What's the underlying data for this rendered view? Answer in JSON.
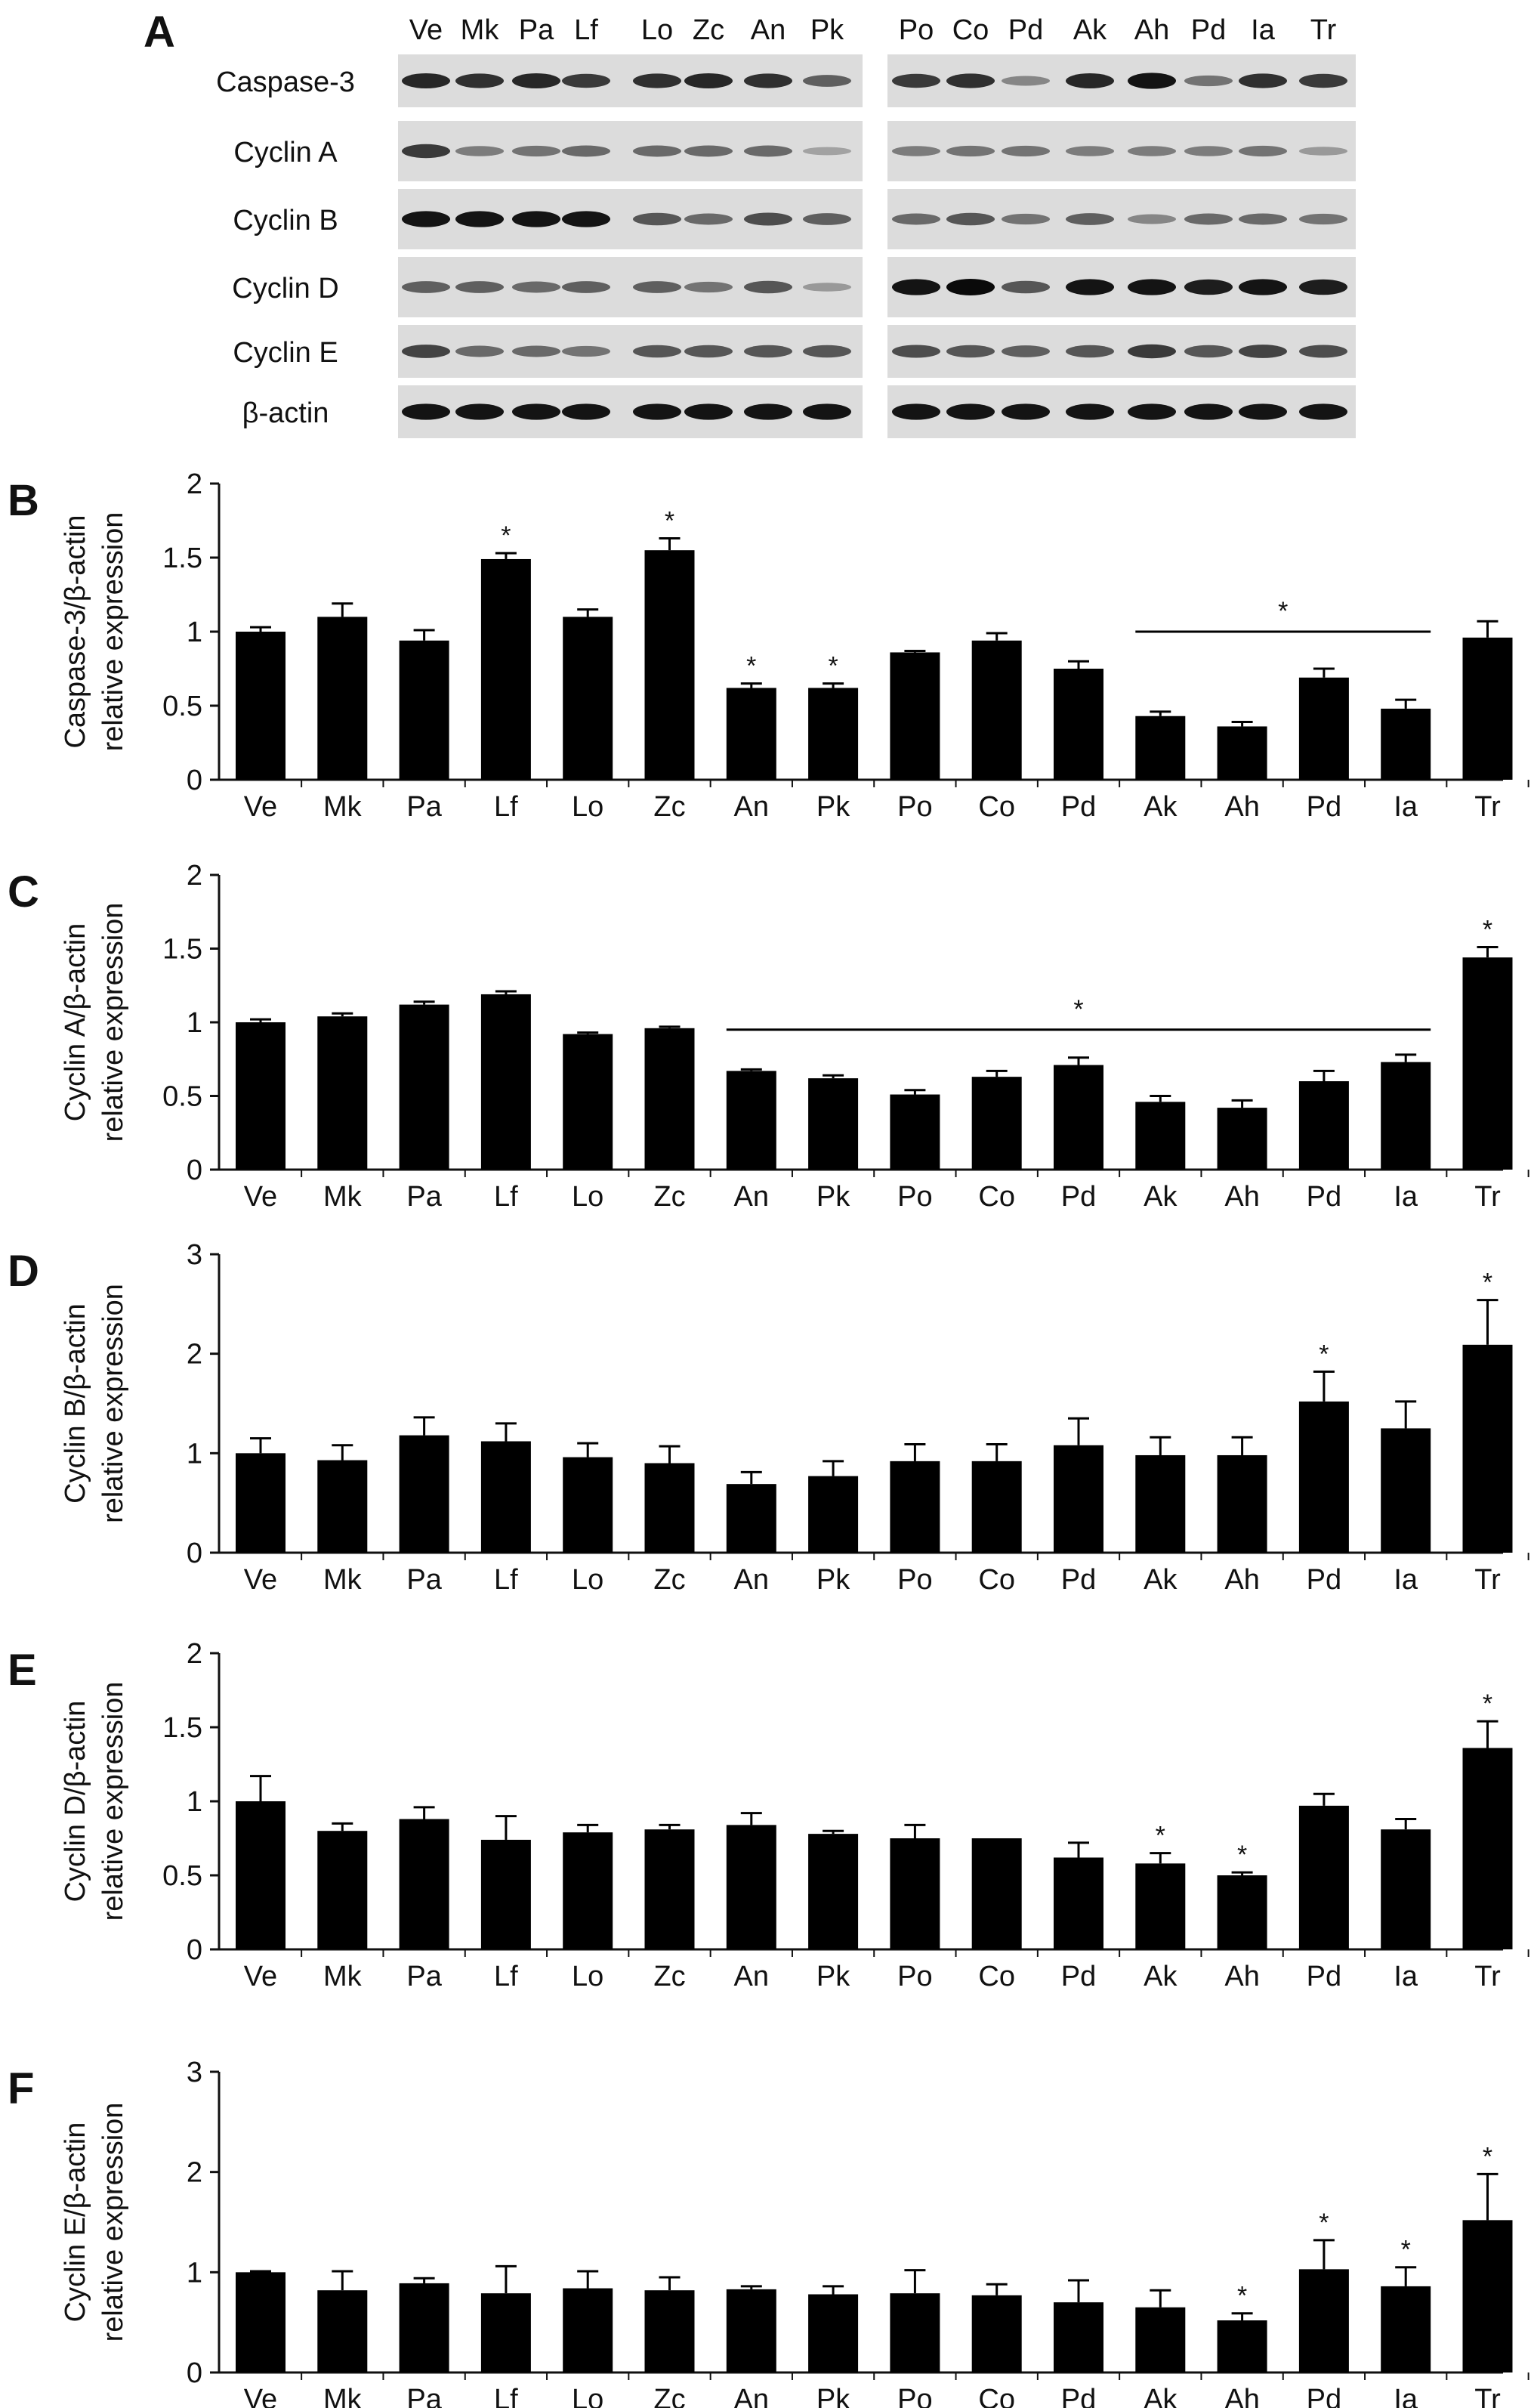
{
  "figure": {
    "panel_letters": [
      "A",
      "B",
      "C",
      "D",
      "E",
      "F"
    ]
  },
  "blot": {
    "lanes_left": [
      "Ve",
      "Mk",
      "Pa",
      "Lf",
      "Lo",
      "Zc",
      "An",
      "Pk"
    ],
    "lanes_right": [
      "Po",
      "Co",
      "Pd",
      "Ak",
      "Ah",
      "Pd",
      "Ia",
      "Tr"
    ],
    "rows": [
      {
        "name": "Caspase-3",
        "intensity": [
          0.85,
          0.8,
          0.85,
          0.75,
          0.8,
          0.85,
          0.8,
          0.55,
          0.75,
          0.8,
          0.35,
          0.85,
          0.95,
          0.45,
          0.8,
          0.75
        ]
      },
      {
        "name": "Cyclin A",
        "intensity": [
          0.75,
          0.4,
          0.45,
          0.5,
          0.5,
          0.5,
          0.5,
          0.2,
          0.4,
          0.45,
          0.45,
          0.4,
          0.4,
          0.4,
          0.45,
          0.25
        ]
      },
      {
        "name": "Cyclin B",
        "intensity": [
          0.95,
          0.95,
          0.95,
          0.95,
          0.6,
          0.5,
          0.65,
          0.55,
          0.5,
          0.6,
          0.45,
          0.55,
          0.35,
          0.5,
          0.5,
          0.45
        ]
      },
      {
        "name": "Cyclin D",
        "intensity": [
          0.55,
          0.55,
          0.5,
          0.55,
          0.55,
          0.45,
          0.6,
          0.25,
          0.95,
          1.0,
          0.6,
          0.95,
          0.95,
          0.9,
          0.95,
          0.9
        ]
      },
      {
        "name": "Cyclin E",
        "intensity": [
          0.7,
          0.5,
          0.5,
          0.45,
          0.6,
          0.6,
          0.6,
          0.6,
          0.65,
          0.6,
          0.55,
          0.6,
          0.75,
          0.6,
          0.7,
          0.65
        ]
      },
      {
        "name": "β-actin",
        "intensity": [
          0.95,
          0.95,
          0.95,
          0.95,
          0.95,
          0.95,
          0.95,
          0.95,
          0.95,
          0.95,
          0.95,
          0.95,
          0.95,
          0.95,
          0.95,
          0.95
        ]
      }
    ]
  },
  "chart_data": [
    {
      "panel": "B",
      "type": "bar",
      "ylabel_lines": [
        "Caspase-3/β-actin",
        "relative expression"
      ],
      "ylim": [
        0,
        2
      ],
      "yticks": [
        0,
        0.5,
        1,
        1.5,
        2
      ],
      "yticklabels": [
        "0",
        "0.5",
        "1",
        "1.5",
        "2"
      ],
      "categories": [
        "Ve",
        "Mk",
        "Pa",
        "Lf",
        "Lo",
        "Zc",
        "An",
        "Pk",
        "Po",
        "Co",
        "Pd",
        "Ak",
        "Ah",
        "Pd",
        "Ia",
        "Tr"
      ],
      "values": [
        1.0,
        1.1,
        0.94,
        1.49,
        1.1,
        1.55,
        0.62,
        0.62,
        0.86,
        0.94,
        0.75,
        0.43,
        0.36,
        0.69,
        0.48,
        0.96
      ],
      "errors": [
        0.03,
        0.09,
        0.07,
        0.04,
        0.05,
        0.08,
        0.03,
        0.03,
        0.01,
        0.05,
        0.05,
        0.03,
        0.03,
        0.06,
        0.06,
        0.11
      ],
      "stars": [
        3,
        5,
        6,
        7
      ],
      "bracket": {
        "from": 11,
        "to": 14,
        "y": 1.0
      }
    },
    {
      "panel": "C",
      "type": "bar",
      "ylabel_lines": [
        "Cyclin A/β-actin",
        "relative expression"
      ],
      "ylim": [
        0,
        2
      ],
      "yticks": [
        0,
        0.5,
        1,
        1.5,
        2
      ],
      "yticklabels": [
        "0",
        "0.5",
        "1",
        "1.5",
        "2"
      ],
      "categories": [
        "Ve",
        "Mk",
        "Pa",
        "Lf",
        "Lo",
        "Zc",
        "An",
        "Pk",
        "Po",
        "Co",
        "Pd",
        "Ak",
        "Ah",
        "Pd",
        "Ia",
        "Tr"
      ],
      "values": [
        1.0,
        1.04,
        1.12,
        1.19,
        0.92,
        0.96,
        0.67,
        0.62,
        0.51,
        0.63,
        0.71,
        0.46,
        0.42,
        0.6,
        0.73,
        1.44
      ],
      "errors": [
        0.02,
        0.02,
        0.02,
        0.02,
        0.01,
        0.01,
        0.01,
        0.02,
        0.03,
        0.04,
        0.05,
        0.04,
        0.05,
        0.07,
        0.05,
        0.07
      ],
      "stars": [
        15
      ],
      "bracket": {
        "from": 6,
        "to": 14,
        "y": 0.95
      }
    },
    {
      "panel": "D",
      "type": "bar",
      "ylabel_lines": [
        "Cyclin B/β-actin",
        "relative expression"
      ],
      "ylim": [
        0,
        3
      ],
      "yticks": [
        0,
        1,
        2,
        3
      ],
      "yticklabels": [
        "0",
        "1",
        "2",
        "3"
      ],
      "categories": [
        "Ve",
        "Mk",
        "Pa",
        "Lf",
        "Lo",
        "Zc",
        "An",
        "Pk",
        "Po",
        "Co",
        "Pd",
        "Ak",
        "Ah",
        "Pd",
        "Ia",
        "Tr"
      ],
      "values": [
        1.0,
        0.93,
        1.18,
        1.12,
        0.96,
        0.9,
        0.69,
        0.77,
        0.92,
        0.92,
        1.08,
        0.98,
        0.98,
        1.52,
        1.25,
        2.09
      ],
      "errors": [
        0.15,
        0.15,
        0.18,
        0.18,
        0.14,
        0.17,
        0.12,
        0.15,
        0.17,
        0.17,
        0.27,
        0.18,
        0.18,
        0.3,
        0.27,
        0.45
      ],
      "stars": [
        13,
        15
      ],
      "bracket": null
    },
    {
      "panel": "E",
      "type": "bar",
      "ylabel_lines": [
        "Cyclin D/β-actin",
        "relative expression"
      ],
      "ylim": [
        0,
        2
      ],
      "yticks": [
        0,
        0.5,
        1,
        1.5,
        2
      ],
      "yticklabels": [
        "0",
        "0.5",
        "1",
        "1.5",
        "2"
      ],
      "categories": [
        "Ve",
        "Mk",
        "Pa",
        "Lf",
        "Lo",
        "Zc",
        "An",
        "Pk",
        "Po",
        "Co",
        "Pd",
        "Ak",
        "Ah",
        "Pd",
        "Ia",
        "Tr"
      ],
      "values": [
        1.0,
        0.8,
        0.88,
        0.74,
        0.79,
        0.81,
        0.84,
        0.78,
        0.75,
        0.75,
        0.62,
        0.58,
        0.5,
        0.97,
        0.81,
        1.36
      ],
      "errors": [
        0.17,
        0.05,
        0.08,
        0.16,
        0.05,
        0.03,
        0.08,
        0.02,
        0.09,
        0.0,
        0.1,
        0.07,
        0.02,
        0.08,
        0.07,
        0.18
      ],
      "stars": [
        11,
        12,
        15
      ],
      "bracket": null
    },
    {
      "panel": "F",
      "type": "bar",
      "ylabel_lines": [
        "Cyclin E/β-actin",
        "relative expression"
      ],
      "ylim": [
        0,
        3
      ],
      "yticks": [
        0,
        1,
        2,
        3
      ],
      "yticklabels": [
        "0",
        "1",
        "2",
        "3"
      ],
      "categories": [
        "Ve",
        "Mk",
        "Pa",
        "Lf",
        "Lo",
        "Zc",
        "An",
        "Pk",
        "Po",
        "Co",
        "Pd",
        "Ak",
        "Ah",
        "Pd",
        "Ia",
        "Tr"
      ],
      "values": [
        1.0,
        0.82,
        0.89,
        0.79,
        0.84,
        0.82,
        0.83,
        0.78,
        0.79,
        0.77,
        0.7,
        0.65,
        0.52,
        1.03,
        0.86,
        1.52
      ],
      "errors": [
        0.01,
        0.19,
        0.05,
        0.27,
        0.17,
        0.13,
        0.03,
        0.08,
        0.23,
        0.11,
        0.22,
        0.17,
        0.07,
        0.29,
        0.19,
        0.46
      ],
      "stars": [
        12,
        13,
        14,
        15
      ],
      "bracket": null
    }
  ]
}
